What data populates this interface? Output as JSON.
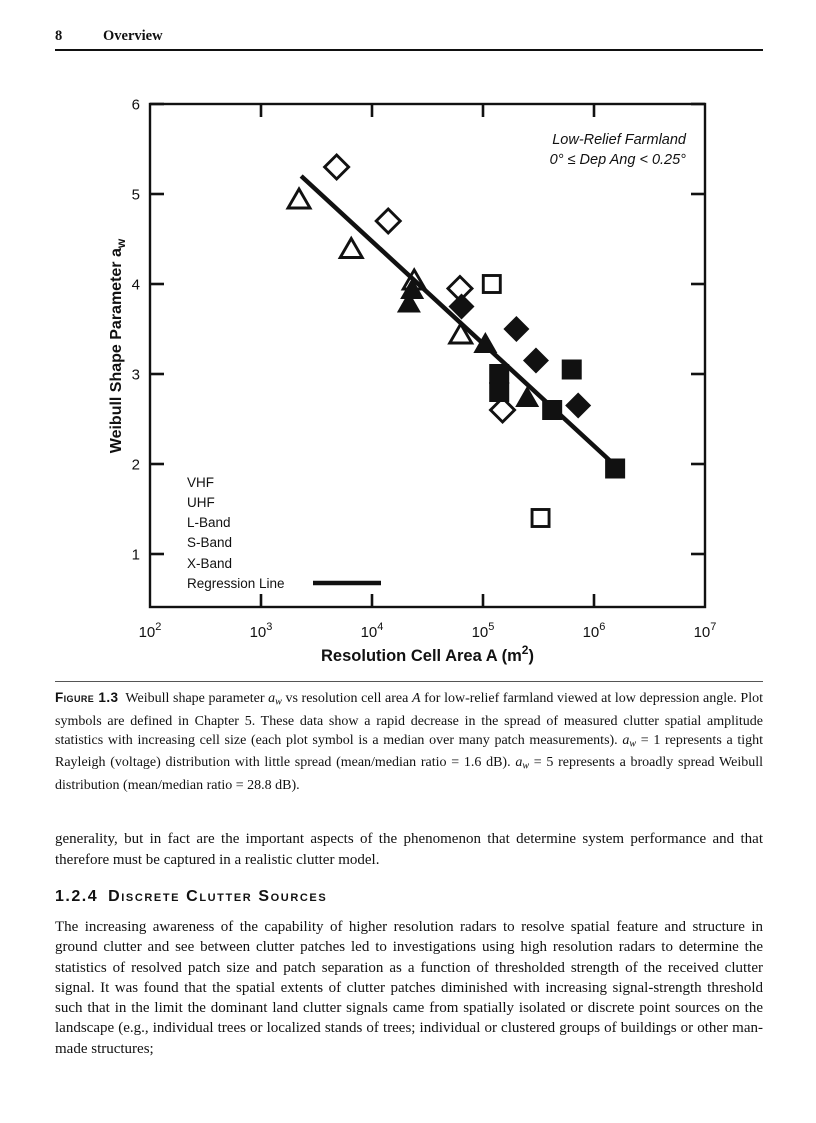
{
  "page": {
    "number": "8",
    "running_title": "Overview"
  },
  "figure": {
    "annotation": [
      "Low-Relief Farmland",
      "0° ≤ Dep Ang < 0.25°"
    ],
    "xlabel": {
      "pre": "Resolution Cell Area A (m",
      "sup": "2",
      "post": ")"
    },
    "ylabel": {
      "pre": "Weibull Shape Parameter a",
      "sub": "w"
    },
    "legend": {
      "band_labels": [
        "VHF",
        "UHF",
        "L-Band",
        "S-Band",
        "X-Band"
      ],
      "regression_label": "Regression Line"
    }
  },
  "chart_data": {
    "type": "scatter",
    "title": "",
    "xlabel": "Resolution Cell Area A (m²)",
    "ylabel": "Weibull Shape Parameter aw",
    "x_scale": "log",
    "xlim": [
      100,
      10000000
    ],
    "ylim": [
      0.41,
      6
    ],
    "x_tick_exponents": [
      2,
      3,
      4,
      5,
      6,
      7
    ],
    "y_ticks": [
      1,
      2,
      3,
      4,
      5,
      6
    ],
    "grid": false,
    "legend_position": "lower-left-inside",
    "annotation": [
      "Low-Relief Farmland",
      "0° ≤ Dep Ang < 0.25°"
    ],
    "legend_labels": [
      "VHF",
      "UHF",
      "L-Band",
      "S-Band",
      "X-Band",
      "Regression Line"
    ],
    "series": [
      {
        "name": "open-triangle",
        "marker": "triangle",
        "fill": "open",
        "points": [
          [
            2200,
            4.95
          ],
          [
            6500,
            4.4
          ],
          [
            24000,
            4.05
          ],
          [
            63000,
            3.45
          ]
        ]
      },
      {
        "name": "filled-triangle",
        "marker": "triangle",
        "fill": "solid",
        "points": [
          [
            23000,
            3.95
          ],
          [
            21500,
            3.8
          ],
          [
            105000,
            3.35
          ],
          [
            250000,
            2.75
          ]
        ]
      },
      {
        "name": "open-diamond",
        "marker": "diamond",
        "fill": "open",
        "points": [
          [
            4800,
            5.3
          ],
          [
            14000,
            4.7
          ],
          [
            62000,
            3.95
          ],
          [
            150000,
            2.6
          ]
        ]
      },
      {
        "name": "filled-diamond",
        "marker": "diamond",
        "fill": "solid",
        "points": [
          [
            64000,
            3.75
          ],
          [
            200000,
            3.5
          ],
          [
            300000,
            3.15
          ],
          [
            720000,
            2.65
          ]
        ]
      },
      {
        "name": "open-square",
        "marker": "square",
        "fill": "open",
        "points": [
          [
            120000,
            4.0
          ],
          [
            330000,
            1.4
          ]
        ]
      },
      {
        "name": "filled-square",
        "marker": "square",
        "fill": "solid",
        "points": [
          [
            140000,
            3.0
          ],
          [
            140000,
            2.8
          ],
          [
            630000,
            3.05
          ],
          [
            420000,
            2.6
          ],
          [
            1550000,
            1.95
          ]
        ]
      }
    ],
    "regression_line": {
      "x1": 2300,
      "y1": 5.2,
      "x2": 1500000,
      "y2": 2.0
    },
    "ink_color": "#111111"
  },
  "caption": {
    "segments": [
      {
        "style": "figlabel",
        "text": "Figure 1.3"
      },
      {
        "style": "normal",
        "text": "  Weibull shape parameter "
      },
      {
        "style": "italic",
        "text": "a"
      },
      {
        "style": "isub",
        "text": "w"
      },
      {
        "style": "normal",
        "text": " vs resolution cell area "
      },
      {
        "style": "italic",
        "text": "A"
      },
      {
        "style": "normal",
        "text": " for low-relief farmland viewed at low depression angle. Plot symbols are defined in Chapter 5. These data show a rapid decrease in the spread of measured clutter spatial amplitude statistics with increasing cell size (each plot symbol is a median over many patch measurements). "
      },
      {
        "style": "italic",
        "text": "a"
      },
      {
        "style": "isub",
        "text": "w"
      },
      {
        "style": "normal",
        "text": " = 1 represents a tight Rayleigh (voltage) distribution with little spread (mean/median ratio = 1.6 dB). "
      },
      {
        "style": "italic",
        "text": "a"
      },
      {
        "style": "isub",
        "text": "w"
      },
      {
        "style": "normal",
        "text": " = 5 represents a broadly spread Weibull distribution (mean/median ratio = 28.8 dB)."
      }
    ]
  },
  "body": {
    "para1": "generality, but in fact are the important aspects of the phenomenon that determine system performance and that therefore must be captured in a realistic clutter model.",
    "section_heading": {
      "number": "1.2.4",
      "title": "Discrete Clutter Sources"
    },
    "para2": "The increasing awareness of the capability of higher resolution radars to resolve spatial feature and structure in ground clutter and see between clutter patches led to investigations using high resolution radars to determine the statistics of resolved patch size and patch separation as a function of thresholded strength of the received clutter signal. It was found that the spatial extents of clutter patches diminished with increasing signal-strength threshold such that in the limit the dominant land clutter signals came from spatially isolated or discrete point sources on the landscape (e.g., individual trees or localized stands of trees; individual or clustered groups of buildings or other man-made structures;"
  }
}
